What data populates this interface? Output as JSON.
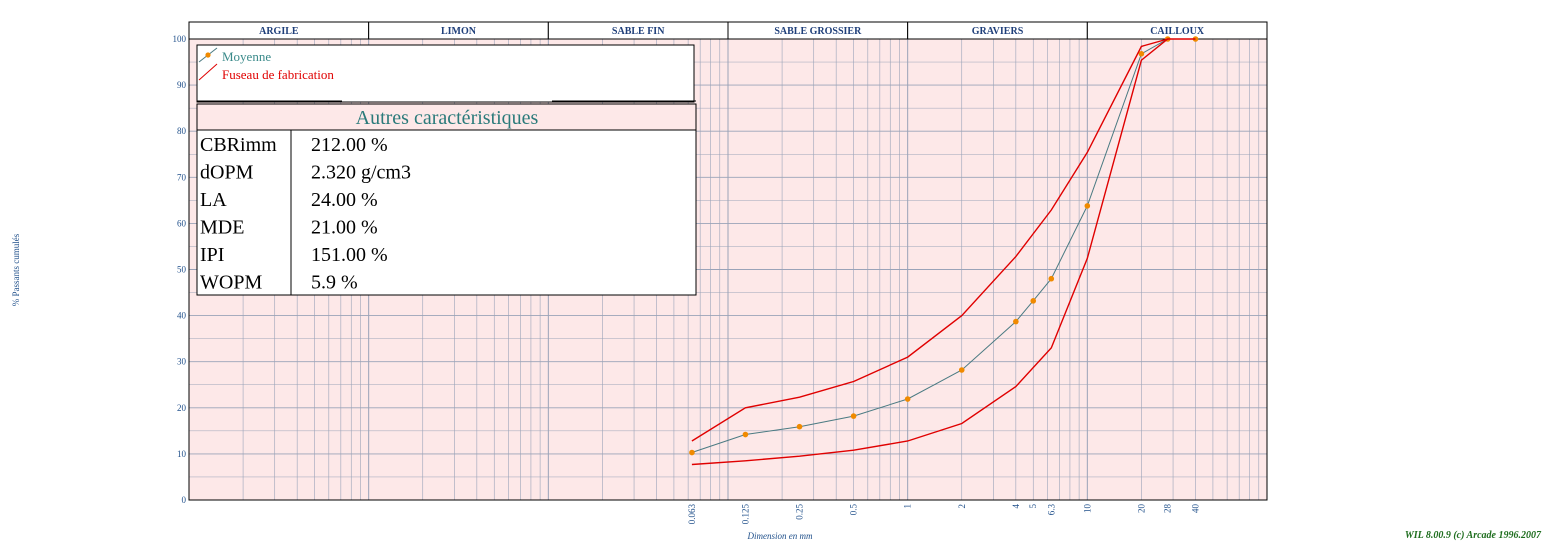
{
  "colors": {
    "plot_background": "#fde8e8",
    "grid": "#9aa3b8",
    "mean_line": "#4a7a82",
    "mean_marker": "#f08a00",
    "fuseau": "#e00000",
    "header_text": "#1f3f7a"
  },
  "header_bands": [
    {
      "label": "ARGILE"
    },
    {
      "label": "LIMON"
    },
    {
      "label": "SABLE FIN"
    },
    {
      "label": "SABLE GROSSIER"
    },
    {
      "label": "GRAVIERS"
    },
    {
      "label": "CAILLOUX"
    }
  ],
  "legend": {
    "mean_label": "Moyenne",
    "fuseau_label": "Fuseau de fabrication"
  },
  "properties": {
    "title": "Autres caractéristiques",
    "rows": [
      {
        "name": "CBRimm",
        "value": "212.00 %"
      },
      {
        "name": "dOPM",
        "value": "2.320 g/cm3"
      },
      {
        "name": "LA",
        "value": "24.00 %"
      },
      {
        "name": "MDE",
        "value": "21.00 %"
      },
      {
        "name": "IPI",
        "value": "151.00 %"
      },
      {
        "name": "WOPM",
        "value": "5.9 %"
      }
    ]
  },
  "footer": {
    "credit": "WIL 8.00.9 (c) Arcade 1996.2007"
  },
  "chart_data": {
    "type": "line",
    "xlabel": "Dimension en mm",
    "ylabel": "% Passants cumulés",
    "x_scale": "log",
    "xlim": [
      0.0001,
      100
    ],
    "ylim": [
      0,
      100
    ],
    "y_ticks": [
      0,
      10,
      20,
      30,
      40,
      50,
      60,
      70,
      80,
      90,
      100
    ],
    "x_tick_labels": [
      {
        "x": 0.063,
        "label": "0.063"
      },
      {
        "x": 0.125,
        "label": "0.125"
      },
      {
        "x": 0.25,
        "label": "0.25"
      },
      {
        "x": 0.5,
        "label": "0.5"
      },
      {
        "x": 1,
        "label": "1"
      },
      {
        "x": 2,
        "label": "2"
      },
      {
        "x": 4,
        "label": "4"
      },
      {
        "x": 5,
        "label": "5"
      },
      {
        "x": 6.3,
        "label": "6.3"
      },
      {
        "x": 10,
        "label": "10"
      },
      {
        "x": 20,
        "label": "20"
      },
      {
        "x": 28,
        "label": "28"
      },
      {
        "x": 40,
        "label": "40"
      }
    ],
    "header_band_bounds": [
      0.0001,
      0.001,
      0.01,
      0.1,
      1,
      10,
      100
    ],
    "grid": true,
    "series": [
      {
        "name": "Moyenne",
        "x": [
          0.063,
          0.125,
          0.25,
          0.5,
          1,
          2,
          4,
          5,
          6.3,
          10,
          20,
          28,
          40
        ],
        "values": [
          10.3,
          14.2,
          15.9,
          18.2,
          21.9,
          28.2,
          38.7,
          43.2,
          48.0,
          63.8,
          96.8,
          100,
          100
        ],
        "markers": true
      },
      {
        "name": "Fuseau de fabrication",
        "x": [
          0.063,
          0.125,
          0.25,
          0.5,
          1,
          2,
          4,
          6.3,
          10,
          20,
          28
        ],
        "values": [
          12.8,
          20.0,
          22.3,
          25.7,
          31.0,
          40.0,
          52.8,
          62.9,
          75.4,
          98.4,
          100
        ],
        "markers": false
      },
      {
        "name": "Fuseau de fabrication",
        "x": [
          0.063,
          0.125,
          0.25,
          0.5,
          1,
          2,
          4,
          6.3,
          10,
          20,
          28,
          40
        ],
        "values": [
          7.7,
          8.5,
          9.5,
          10.8,
          12.8,
          16.6,
          24.6,
          33.0,
          52.4,
          95.4,
          100,
          100
        ],
        "markers": false
      }
    ]
  }
}
